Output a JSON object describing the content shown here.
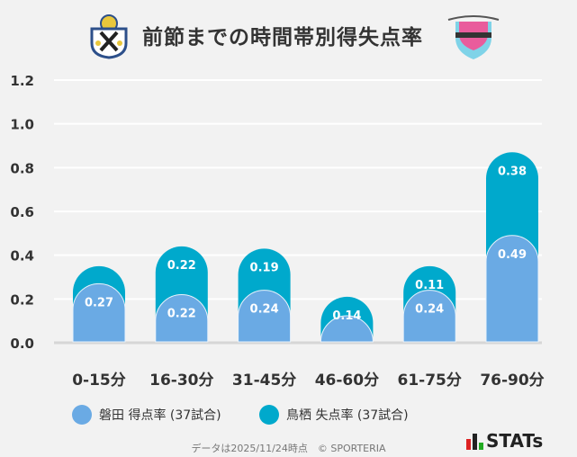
{
  "chart_data": {
    "type": "bar",
    "stacked": true,
    "title": "前節までの時間帯別得失点率",
    "categories": [
      "0-15分",
      "16-30分",
      "31-45分",
      "46-60分",
      "61-75分",
      "76-90分"
    ],
    "series": [
      {
        "name": "磐田 得点率 (37試合)",
        "values": [
          0.27,
          0.22,
          0.24,
          0.07,
          0.24,
          0.49
        ],
        "labels": [
          "0.27",
          "0.22",
          "0.24",
          "",
          "0.24",
          "0.49"
        ],
        "color": "#6aaae4"
      },
      {
        "name": "鳥栖 失点率 (37試合)",
        "values": [
          0.08,
          0.22,
          0.19,
          0.14,
          0.11,
          0.38
        ],
        "labels": [
          "",
          "0.22",
          "0.19",
          "0.14",
          "0.11",
          "0.38"
        ],
        "color": "#00a9cc"
      }
    ],
    "ylim": [
      0,
      1.2
    ],
    "yticks": [
      "0.0",
      "0.2",
      "0.4",
      "0.6",
      "0.8",
      "1.0",
      "1.2"
    ],
    "grid": true,
    "legend_position": "bottom"
  },
  "footer": "データは2025/11/24時点　© SPORTERIA",
  "brand": "STATs",
  "logos": [
    "Jubilo Iwata crest",
    "Sagan Tosu crest",
    "sagantosu"
  ]
}
